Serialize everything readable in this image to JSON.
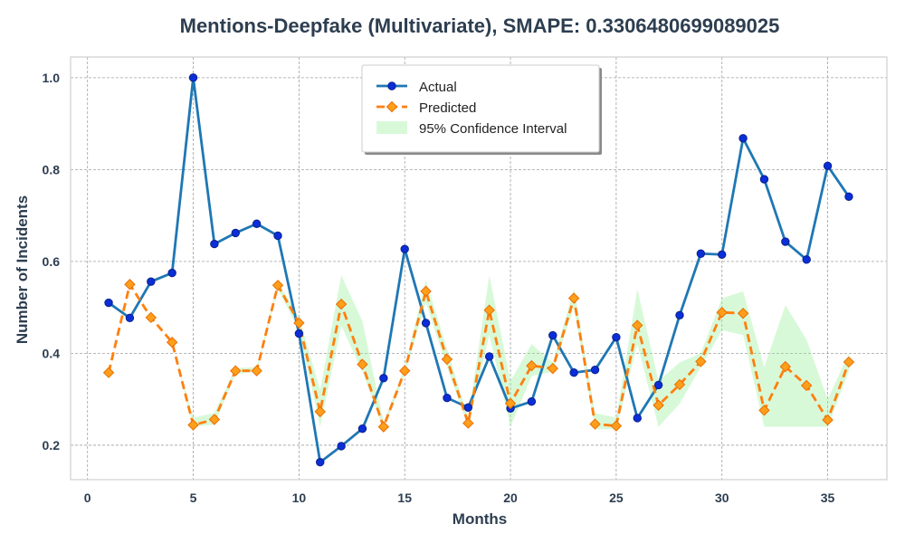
{
  "chart_data": {
    "type": "line",
    "title": "Mentions-Deepfake (Multivariate), SMAPE: 0.3306480699089025",
    "xlabel": "Months",
    "ylabel": "Number of Incidents",
    "xlim": [
      -0.8,
      37.8
    ],
    "ylim": [
      0.125,
      1.045
    ],
    "xticks": [
      0,
      5,
      10,
      15,
      20,
      25,
      30,
      35
    ],
    "yticks": [
      0.2,
      0.4,
      0.6,
      0.8,
      1.0
    ],
    "ytick_labels": [
      "0.2",
      "0.4",
      "0.6",
      "0.8",
      "1.0"
    ],
    "grid": true,
    "legend_position": "top-center",
    "x": [
      1,
      2,
      3,
      4,
      5,
      6,
      7,
      8,
      9,
      10,
      11,
      12,
      13,
      14,
      15,
      16,
      17,
      18,
      19,
      20,
      21,
      22,
      23,
      24,
      25,
      26,
      27,
      28,
      29,
      30,
      31,
      32,
      33,
      34,
      35,
      36
    ],
    "series": [
      {
        "name": "Actual",
        "color": "#1f77b4",
        "marker_color": "#0a2fd8",
        "values": [
          0.51,
          0.477,
          0.556,
          0.575,
          1.0,
          0.638,
          0.662,
          0.682,
          0.656,
          0.443,
          0.163,
          0.198,
          0.236,
          0.346,
          0.627,
          0.466,
          0.303,
          0.282,
          0.393,
          0.28,
          0.295,
          0.439,
          0.358,
          0.364,
          0.435,
          0.259,
          0.331,
          0.483,
          0.617,
          0.615,
          0.868,
          0.779,
          0.643,
          0.604,
          0.808,
          0.741
        ]
      },
      {
        "name": "Predicted",
        "color": "#ff7f0e",
        "marker_color": "#ff9e1b",
        "values": [
          0.358,
          0.55,
          0.478,
          0.424,
          0.244,
          0.256,
          0.362,
          0.362,
          0.548,
          0.466,
          0.273,
          0.507,
          0.376,
          0.24,
          0.362,
          0.535,
          0.387,
          0.248,
          0.494,
          0.291,
          0.373,
          0.367,
          0.52,
          0.246,
          0.242,
          0.461,
          0.287,
          0.332,
          0.382,
          0.489,
          0.487,
          0.276,
          0.371,
          0.33,
          0.255,
          0.381
        ]
      },
      {
        "name": "95% Confidence Interval",
        "color": "#90ee90",
        "lower": [
          0.358,
          0.55,
          0.478,
          0.424,
          0.24,
          0.245,
          0.355,
          0.36,
          0.54,
          0.45,
          0.24,
          0.46,
          0.36,
          0.235,
          0.355,
          0.51,
          0.37,
          0.24,
          0.44,
          0.24,
          0.35,
          0.36,
          0.5,
          0.235,
          0.235,
          0.42,
          0.24,
          0.29,
          0.37,
          0.45,
          0.44,
          0.24,
          0.24,
          0.24,
          0.24,
          0.36
        ],
        "upper": [
          0.358,
          0.55,
          0.478,
          0.424,
          0.26,
          0.27,
          0.368,
          0.37,
          0.555,
          0.48,
          0.32,
          0.57,
          0.47,
          0.25,
          0.37,
          0.56,
          0.41,
          0.26,
          0.57,
          0.34,
          0.42,
          0.38,
          0.54,
          0.27,
          0.26,
          0.54,
          0.34,
          0.38,
          0.4,
          0.52,
          0.535,
          0.37,
          0.505,
          0.43,
          0.3,
          0.4
        ]
      }
    ]
  }
}
